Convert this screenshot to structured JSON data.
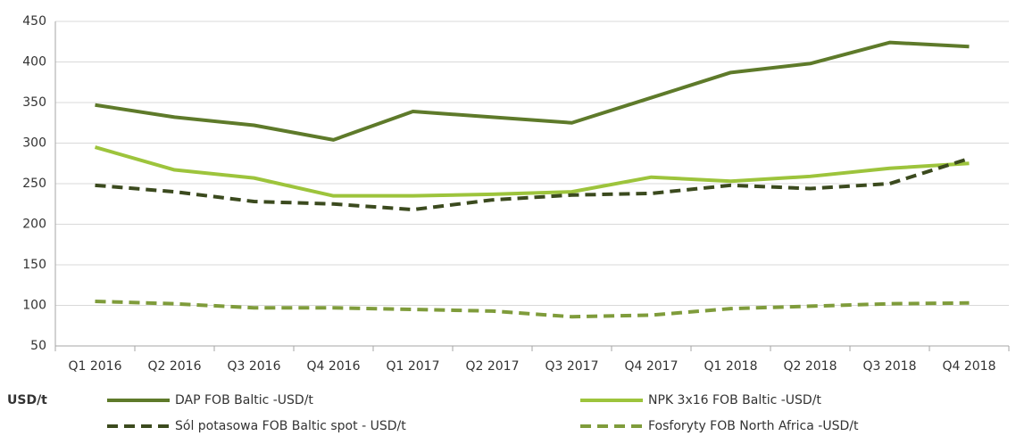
{
  "chart_data": {
    "type": "line",
    "y_label": "USD/t",
    "categories": [
      "Q1 2016",
      "Q2 2016",
      "Q3 2016",
      "Q4 2016",
      "Q1 2017",
      "Q2 2017",
      "Q3 2017",
      "Q4 2017",
      "Q1 2018",
      "Q2 2018",
      "Q3 2018",
      "Q4 2018"
    ],
    "series": [
      {
        "name": "DAP FOB Baltic -USD/t",
        "color": "#5e7a2a",
        "dash": false,
        "values": [
          347,
          332,
          322,
          304,
          339,
          332,
          325,
          356,
          387,
          398,
          424,
          419
        ]
      },
      {
        "name": "NPK 3x16 FOB Baltic -USD/t",
        "color": "#9dc43c",
        "dash": false,
        "values": [
          295,
          267,
          257,
          235,
          235,
          237,
          240,
          258,
          253,
          259,
          269,
          275
        ]
      },
      {
        "name": "Sól potasowa FOB Baltic spot - USD/t",
        "color": "#3b4a1e",
        "dash": true,
        "values": [
          248,
          240,
          228,
          225,
          218,
          230,
          236,
          238,
          248,
          244,
          250,
          281
        ]
      },
      {
        "name": "Fosforyty FOB North Africa -USD/t",
        "color": "#7f9c3b",
        "dash": true,
        "values": [
          105,
          102,
          97,
          97,
          95,
          93,
          86,
          88,
          96,
          99,
          102,
          103
        ]
      }
    ],
    "ylim": [
      50,
      450
    ],
    "yticks": [
      50,
      100,
      150,
      200,
      250,
      300,
      350,
      400,
      450
    ],
    "grid": true
  }
}
